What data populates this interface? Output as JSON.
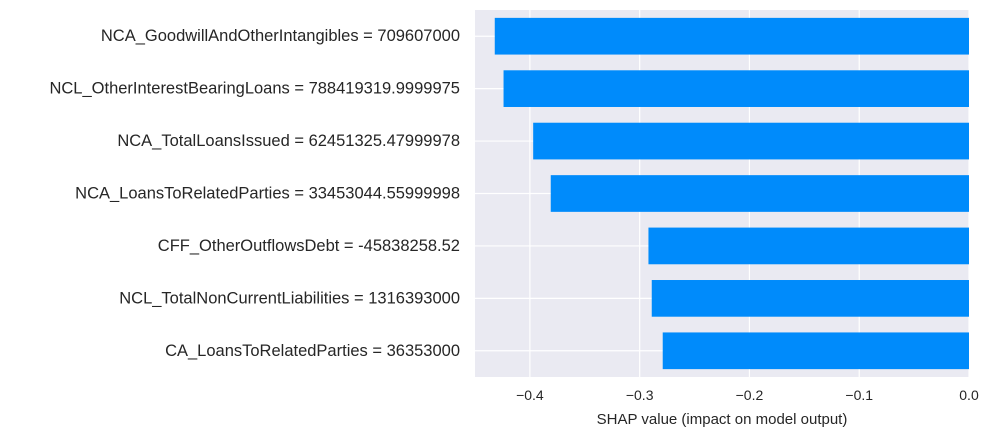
{
  "chart_data": {
    "type": "bar",
    "orientation": "horizontal",
    "categories": [
      "NCA_GoodwillAndOtherIntangibles = 709607000",
      "NCL_OtherInterestBearingLoans = 788419319.9999975",
      "NCA_TotalLoansIssued = 62451325.47999978",
      "NCA_LoansToRelatedParties = 33453044.55999998",
      "CFF_OtherOutflowsDebt = -45838258.52",
      "NCL_TotalNonCurrentLiabilities = 1316393000",
      "CA_LoansToRelatedParties = 36353000"
    ],
    "values": [
      -0.432,
      -0.424,
      -0.397,
      -0.381,
      -0.292,
      -0.289,
      -0.279
    ],
    "xlabel": "SHAP value (impact on model output)",
    "ylabel": "",
    "xlim": [
      -0.45,
      0.0
    ],
    "xticks": [
      -0.4,
      -0.3,
      -0.2,
      -0.1,
      0.0
    ],
    "xtick_labels": [
      "−0.4",
      "−0.3",
      "−0.2",
      "−0.1",
      "0.0"
    ],
    "grid": true,
    "colors": {
      "bar": "#008bfb",
      "plot_background": "#eaeaf2",
      "grid": "#ffffff",
      "text": "#262626"
    }
  }
}
